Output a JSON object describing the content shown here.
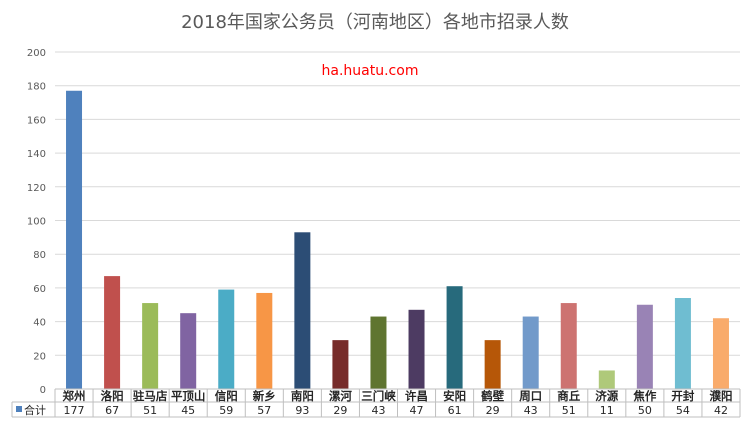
{
  "chart_data": {
    "type": "bar",
    "title": "2018年国家公务员（河南地区）各地市招录人数",
    "watermark": "ha.huatu.com",
    "categories": [
      "郑州",
      "洛阳",
      "驻马店",
      "平顶山",
      "信阳",
      "新乡",
      "南阳",
      "漯河",
      "三门峡",
      "许昌",
      "安阳",
      "鹤壁",
      "周口",
      "商丘",
      "济源",
      "焦作",
      "开封",
      "濮阳"
    ],
    "series": [
      {
        "name": "合计",
        "values": [
          177,
          67,
          51,
          45,
          59,
          57,
          93,
          29,
          43,
          47,
          61,
          29,
          43,
          51,
          11,
          50,
          54,
          42
        ]
      }
    ],
    "yticks": [
      "0",
      "20",
      "40",
      "60",
      "80",
      "100",
      "120",
      "140",
      "160",
      "180",
      "200"
    ],
    "ylim": [
      0,
      200
    ],
    "grid": true,
    "legend": "table-left",
    "colors": [
      "#4f81bd",
      "#c0504d",
      "#9bbb59",
      "#8064a2",
      "#4bacc6",
      "#f79646",
      "#2c4d75",
      "#772c2a",
      "#5f7530",
      "#4d3b62",
      "#276a7c",
      "#b65708",
      "#729aca",
      "#cd7371",
      "#afc97a",
      "#9983b5",
      "#6fbdd1",
      "#f9ab6b"
    ],
    "legend_color": "#4f81bd"
  }
}
